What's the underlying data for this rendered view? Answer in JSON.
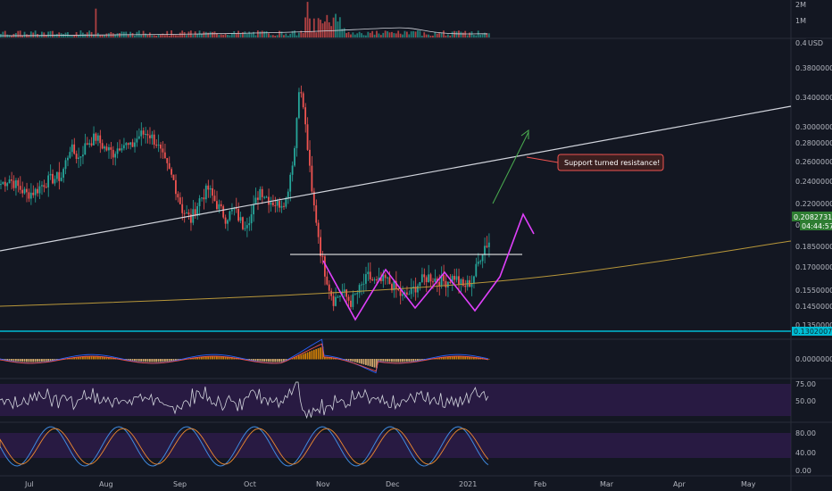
{
  "chart_data": {
    "type": "candlestick",
    "currency": "USD",
    "colors": {
      "bg": "#131722",
      "up": "#26a69a",
      "down": "#ef5350",
      "grid": "#2a2e39",
      "trendline": "#d1d4dc",
      "ma": "#b8973a",
      "support": "#00bcd4",
      "pattern": "#e040fb",
      "projection": "#4caf50",
      "price_badge": "#2e7d32",
      "callout_bg": "#3b1f1f",
      "callout_border": "#ef5350",
      "osc_fill": "#3a1e5c",
      "rsi_line": "#d1d4dc",
      "stoch_k": "#3f8ae0",
      "stoch_d": "#ef8a2f"
    },
    "x_labels": [
      "Jul",
      "Aug",
      "Sep",
      "Oct",
      "Nov",
      "Dec",
      "2021",
      "Feb",
      "Mar",
      "Apr",
      "May"
    ],
    "price_axis": {
      "ticks": [
        "0.4",
        "0.38000000",
        "0.34000000",
        "0.30000000",
        "0.28000000",
        "0.26000000",
        "0.24000000",
        "0.22000000",
        "0.2",
        "0.18500000",
        "0.17000000",
        "0.15500000",
        "0.14500000",
        "0.13500000"
      ],
      "ylim": [
        0.128,
        0.402
      ]
    },
    "volume_axis": {
      "ticks": [
        "2M",
        "1M"
      ]
    },
    "macd_axis": {
      "ticks": [
        "0.00000000"
      ]
    },
    "rsi_axis": {
      "ticks": [
        "75.00",
        "50.00"
      ]
    },
    "stoch_axis": {
      "ticks": [
        "80.00",
        "40.00",
        "0.00"
      ]
    },
    "current_price": "0.20827319",
    "countdown": "04:44:57",
    "support_level": "0.13020079",
    "annotation": "Support turned resistance!",
    "ohlc_close_path": [
      [
        0,
        0.265
      ],
      [
        4,
        0.27
      ],
      [
        8,
        0.262
      ],
      [
        12,
        0.255
      ],
      [
        16,
        0.258
      ],
      [
        20,
        0.266
      ],
      [
        24,
        0.27
      ],
      [
        28,
        0.272
      ],
      [
        32,
        0.3
      ],
      [
        36,
        0.29
      ],
      [
        40,
        0.305
      ],
      [
        44,
        0.31
      ],
      [
        48,
        0.3
      ],
      [
        52,
        0.295
      ],
      [
        56,
        0.305
      ],
      [
        60,
        0.3
      ],
      [
        64,
        0.312
      ],
      [
        68,
        0.315
      ],
      [
        72,
        0.305
      ],
      [
        76,
        0.285
      ],
      [
        80,
        0.268
      ],
      [
        84,
        0.24
      ],
      [
        88,
        0.23
      ],
      [
        92,
        0.25
      ],
      [
        96,
        0.26
      ],
      [
        100,
        0.245
      ],
      [
        104,
        0.232
      ],
      [
        108,
        0.24
      ],
      [
        112,
        0.225
      ],
      [
        116,
        0.235
      ],
      [
        120,
        0.26
      ],
      [
        124,
        0.25
      ],
      [
        128,
        0.245
      ],
      [
        132,
        0.25
      ],
      [
        136,
        0.3
      ],
      [
        138,
        0.36
      ],
      [
        140,
        0.34
      ],
      [
        142,
        0.3
      ],
      [
        144,
        0.255
      ],
      [
        146,
        0.23
      ],
      [
        148,
        0.2
      ],
      [
        150,
        0.18
      ],
      [
        152,
        0.165
      ],
      [
        154,
        0.152
      ],
      [
        158,
        0.16
      ],
      [
        162,
        0.15
      ],
      [
        166,
        0.162
      ],
      [
        170,
        0.175
      ],
      [
        174,
        0.168
      ],
      [
        178,
        0.172
      ],
      [
        182,
        0.165
      ],
      [
        186,
        0.155
      ],
      [
        190,
        0.16
      ],
      [
        194,
        0.17
      ],
      [
        198,
        0.175
      ],
      [
        202,
        0.172
      ],
      [
        206,
        0.17
      ],
      [
        210,
        0.175
      ],
      [
        214,
        0.165
      ],
      [
        218,
        0.17
      ],
      [
        222,
        0.195
      ],
      [
        224,
        0.205
      ],
      [
        226,
        0.208
      ]
    ]
  }
}
